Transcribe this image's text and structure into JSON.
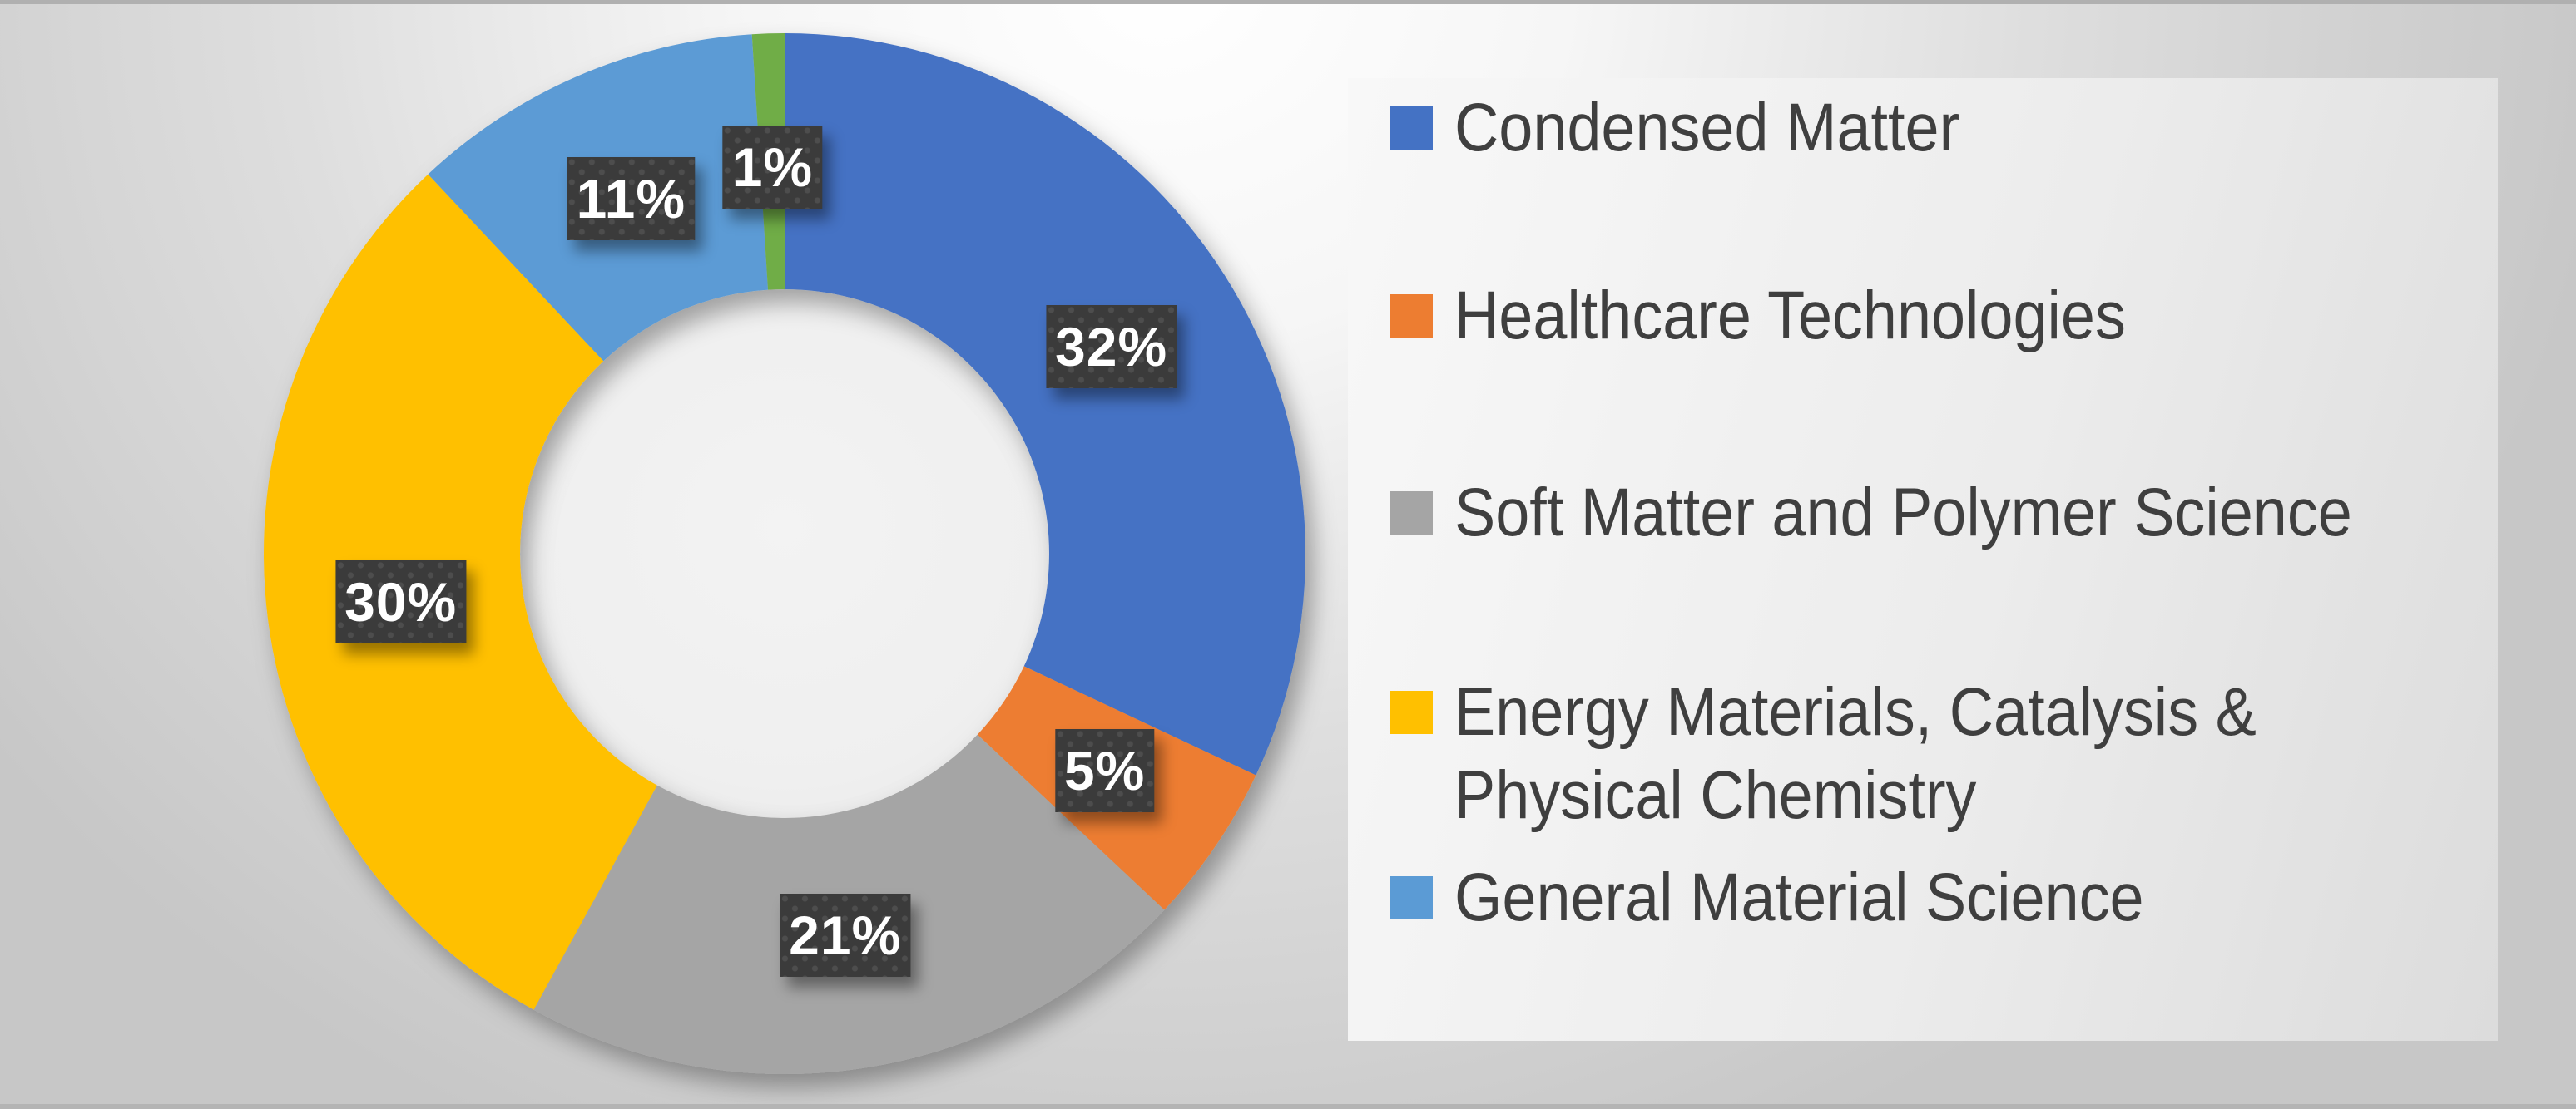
{
  "chart_data": {
    "type": "pie",
    "subtype": "donut",
    "title": "",
    "direction": "clockwise",
    "start_angle_deg": 0,
    "legend_position": "right",
    "slices": [
      {
        "label": "Condensed Matter",
        "value": 32,
        "data_label": "32%",
        "color": "#4472C4"
      },
      {
        "label": "Healthcare Technologies",
        "value": 5,
        "data_label": "5%",
        "color": "#ED7D31"
      },
      {
        "label": "Soft Matter and Polymer Science",
        "value": 21,
        "data_label": "21%",
        "color": "#A5A5A5"
      },
      {
        "label": "Energy Materials, Catalysis & Physical Chemistry",
        "value": 30,
        "data_label": "30%",
        "color": "#FFC000"
      },
      {
        "label": "General Material Science",
        "value": 11,
        "data_label": "11%",
        "color": "#5B9BD5"
      },
      {
        "label": "",
        "value": 1,
        "data_label": "1%",
        "color": "#70AD47"
      }
    ]
  },
  "legend": {
    "items": [
      {
        "lines": [
          "Condensed Matter"
        ],
        "color": "#4472C4"
      },
      {
        "lines": [
          "Healthcare Technologies"
        ],
        "color": "#ED7D31"
      },
      {
        "lines": [
          "Soft Matter and Polymer Science"
        ],
        "color": "#A5A5A5"
      },
      {
        "lines": [
          "Energy Materials, Catalysis &",
          "Physical Chemistry"
        ],
        "color": "#FFC000"
      },
      {
        "lines": [
          "General Material Science"
        ],
        "color": "#5B9BD5"
      }
    ]
  },
  "styles": {
    "label_box_bg": "#3B3B3B",
    "label_text_color": "#FFFFFF",
    "legend_text_color": "#3F3F3F",
    "hole_fill": "#F0F0F0"
  }
}
